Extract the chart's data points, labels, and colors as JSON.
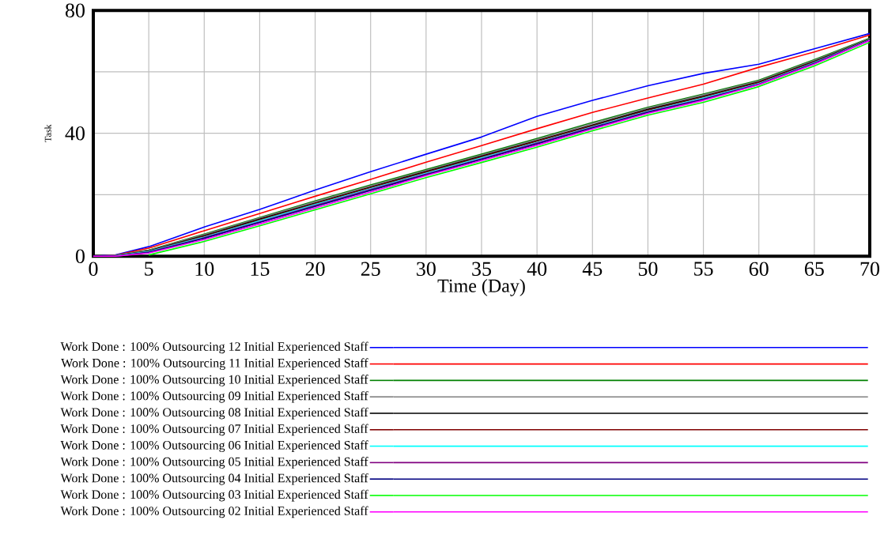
{
  "chart_data": {
    "type": "line",
    "xlabel": "Time (Day)",
    "ylabel": "Task",
    "x": [
      0,
      2,
      5,
      10,
      15,
      20,
      25,
      30,
      35,
      40,
      45,
      50,
      55,
      60,
      65,
      70
    ],
    "xlim": [
      0,
      70
    ],
    "ylim": [
      0,
      80
    ],
    "xticks": [
      0,
      5,
      10,
      15,
      20,
      25,
      30,
      35,
      40,
      45,
      50,
      55,
      60,
      65,
      70
    ],
    "yticks": [
      0,
      {
        "value": 20,
        "label": null
      },
      40,
      {
        "value": 60,
        "label": null
      },
      80
    ],
    "grid": true,
    "legend": "bottom",
    "line_style": "solid",
    "marker": "none",
    "series": [
      {
        "name": "Work Done : 100% Outsourcing 12 Initial Experienced Staff",
        "color": "#0000ff",
        "values": [
          0,
          0.4,
          3.1,
          9.5,
          15.2,
          21.5,
          27.5,
          33.2,
          38.8,
          45.5,
          50.7,
          55.5,
          59.5,
          62.5,
          67.5,
          72.5
        ]
      },
      {
        "name": "Work Done : 100% Outsourcing 11 Initial Experienced Staff",
        "color": "#ff0000",
        "values": [
          0,
          0.3,
          2.6,
          8.3,
          13.9,
          19.5,
          25.0,
          30.6,
          36.0,
          41.5,
          46.8,
          51.5,
          56.0,
          61.5,
          66.5,
          72.0
        ]
      },
      {
        "name": "Work Done : 100% Outsourcing 10 Initial Experienced Staff",
        "color": "#008000",
        "values": [
          0,
          0.2,
          2.0,
          7.2,
          12.6,
          18.0,
          23.2,
          28.2,
          33.2,
          38.3,
          43.5,
          48.5,
          52.8,
          57.3,
          64.0,
          71.0
        ]
      },
      {
        "name": "Work Done : 100% Outsourcing 09 Initial Experienced Staff",
        "color": "#808080",
        "values": [
          0,
          0.2,
          1.9,
          7.0,
          12.4,
          17.7,
          22.9,
          27.9,
          32.9,
          38.0,
          43.2,
          48.2,
          52.5,
          57.0,
          63.7,
          70.8
        ]
      },
      {
        "name": "Work Done : 100% Outsourcing 08 Initial Experienced Staff",
        "color": "#000000",
        "values": [
          0,
          0.1,
          1.7,
          6.7,
          12.1,
          17.3,
          22.5,
          27.6,
          32.6,
          37.6,
          42.7,
          47.8,
          52.1,
          56.7,
          63.4,
          70.6
        ]
      },
      {
        "name": "Work Done : 100% Outsourcing 07 Initial Experienced Staff",
        "color": "#800000",
        "values": [
          0,
          0.1,
          1.6,
          6.5,
          11.8,
          17.1,
          22.3,
          27.3,
          32.3,
          37.4,
          42.4,
          47.5,
          51.8,
          56.5,
          63.2,
          70.5
        ]
      },
      {
        "name": "Work Done : 100% Outsourcing 06 Initial Experienced Staff",
        "color": "#00ffff",
        "values": [
          0,
          0.1,
          1.5,
          6.2,
          11.5,
          16.8,
          22.0,
          27.0,
          32.0,
          37.0,
          42.1,
          47.2,
          51.5,
          56.2,
          63.0,
          70.4
        ]
      },
      {
        "name": "Work Done : 100% Outsourcing 05 Initial Experienced Staff",
        "color": "#800080",
        "values": [
          0,
          0.0,
          1.3,
          6.0,
          11.2,
          16.5,
          21.7,
          26.7,
          31.7,
          36.8,
          41.9,
          47.0,
          51.2,
          56.0,
          62.8,
          70.3
        ]
      },
      {
        "name": "Work Done : 100% Outsourcing 04 Initial Experienced Staff",
        "color": "#000080",
        "values": [
          0,
          0.0,
          1.2,
          5.8,
          11.0,
          16.2,
          21.4,
          26.5,
          31.5,
          36.5,
          41.7,
          46.8,
          51.0,
          55.9,
          62.7,
          70.3
        ]
      },
      {
        "name": "Work Done : 100% Outsourcing 03 Initial Experienced Staff",
        "color": "#00ff00",
        "values": [
          null,
          null,
          0.4,
          4.8,
          9.9,
          15.1,
          20.3,
          25.6,
          30.5,
          35.5,
          40.8,
          45.9,
          50.1,
          55.2,
          61.9,
          69.6
        ]
      },
      {
        "name": "Work Done : 100% Outsourcing 02 Initial Experienced Staff",
        "color": "#ff00ff",
        "values": [
          0,
          0.0,
          1.0,
          5.4,
          10.5,
          15.7,
          20.9,
          26.2,
          31.1,
          36.1,
          41.4,
          46.5,
          50.7,
          55.8,
          62.5,
          70.2
        ]
      }
    ]
  }
}
